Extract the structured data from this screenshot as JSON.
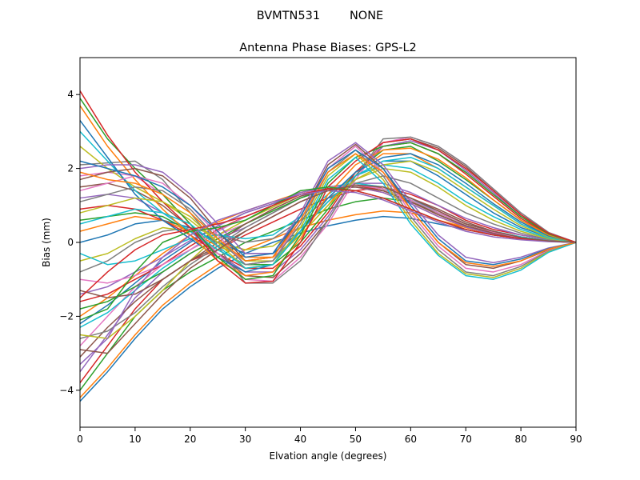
{
  "suptitle": "BVMTN531        NONE",
  "chart_data": {
    "type": "line",
    "title": "Antenna Phase Biases: GPS-L2",
    "xlabel": "Elvation angle (degrees)",
    "ylabel": "Bias (mm)",
    "xlim": [
      0,
      90
    ],
    "ylim": [
      -5,
      5
    ],
    "xticks": [
      0,
      10,
      20,
      30,
      40,
      50,
      60,
      70,
      80,
      90
    ],
    "yticks": [
      -4,
      -2,
      0,
      2,
      4
    ],
    "x": [
      0,
      5,
      10,
      15,
      20,
      25,
      30,
      35,
      40,
      45,
      50,
      55,
      60,
      65,
      70,
      75,
      80,
      85,
      90
    ],
    "grid": false,
    "legend": "none",
    "colors": [
      "#1f77b4",
      "#ff7f0e",
      "#2ca02c",
      "#d62728",
      "#9467bd",
      "#8c564b",
      "#e377c2",
      "#7f7f7f",
      "#bcbd22",
      "#17becf"
    ],
    "series": [
      {
        "values": [
          -4.3,
          -3.5,
          -2.6,
          -1.8,
          -1.2,
          -0.7,
          -0.3,
          0.0,
          0.25,
          0.45,
          0.6,
          0.7,
          0.65,
          0.5,
          0.35,
          0.2,
          0.1,
          0.05,
          0.0
        ]
      },
      {
        "values": [
          -4.2,
          -3.4,
          -2.5,
          -1.7,
          -1.1,
          -0.6,
          -0.2,
          0.1,
          0.4,
          0.6,
          0.75,
          0.85,
          0.8,
          0.6,
          0.4,
          0.25,
          0.15,
          0.05,
          0.0
        ]
      },
      {
        "values": [
          -4.0,
          -3.0,
          -2.0,
          -1.3,
          -0.8,
          -0.4,
          0.0,
          0.3,
          0.6,
          0.9,
          1.1,
          1.2,
          1.1,
          0.8,
          0.5,
          0.3,
          0.15,
          0.05,
          0.0
        ]
      },
      {
        "values": [
          -3.8,
          -2.8,
          -1.8,
          -1.0,
          -0.5,
          -0.2,
          0.2,
          0.55,
          0.9,
          1.2,
          1.4,
          1.5,
          1.3,
          1.0,
          0.6,
          0.35,
          0.2,
          0.08,
          0.0
        ]
      },
      {
        "values": [
          -3.5,
          -2.5,
          -1.5,
          -0.8,
          -0.3,
          0.1,
          0.4,
          0.8,
          1.2,
          1.5,
          1.6,
          1.6,
          1.35,
          1.0,
          0.65,
          0.4,
          0.2,
          0.08,
          0.0
        ]
      },
      {
        "values": [
          -3.1,
          -2.3,
          -1.6,
          -1.0,
          -0.5,
          -0.1,
          0.3,
          0.7,
          1.1,
          1.4,
          1.55,
          1.5,
          1.2,
          0.9,
          0.55,
          0.3,
          0.15,
          0.05,
          0.0
        ]
      },
      {
        "values": [
          -2.8,
          -2.0,
          -1.2,
          -0.6,
          -0.2,
          0.2,
          0.5,
          0.9,
          1.25,
          1.5,
          1.6,
          1.5,
          1.2,
          0.85,
          0.5,
          0.3,
          0.15,
          0.05,
          0.0
        ]
      },
      {
        "values": [
          -2.6,
          -2.4,
          -1.9,
          -1.2,
          -0.6,
          -0.1,
          0.4,
          0.8,
          1.2,
          1.45,
          1.55,
          1.45,
          1.15,
          0.8,
          0.5,
          0.28,
          0.12,
          0.04,
          0.0
        ]
      },
      {
        "values": [
          -2.5,
          -2.6,
          -2.0,
          -1.3,
          -0.5,
          0.2,
          0.6,
          0.95,
          1.3,
          1.5,
          1.55,
          1.4,
          1.1,
          0.75,
          0.45,
          0.25,
          0.1,
          0.03,
          0.0
        ]
      },
      {
        "values": [
          -2.3,
          -1.9,
          -1.3,
          -0.7,
          -0.2,
          0.3,
          0.7,
          1.0,
          1.3,
          1.5,
          1.6,
          1.5,
          1.2,
          0.8,
          0.5,
          0.3,
          0.15,
          0.05,
          0.0
        ]
      },
      {
        "values": [
          -2.2,
          -1.7,
          -1.1,
          -0.5,
          0.0,
          0.45,
          0.8,
          1.05,
          1.3,
          1.45,
          1.5,
          1.4,
          1.1,
          0.75,
          0.45,
          0.25,
          0.1,
          0.04,
          0.0
        ]
      },
      {
        "values": [
          -2.0,
          -1.5,
          -0.9,
          -0.3,
          0.2,
          0.55,
          0.85,
          1.1,
          1.35,
          1.5,
          1.5,
          1.35,
          1.05,
          0.7,
          0.4,
          0.22,
          0.1,
          0.03,
          0.0
        ]
      },
      {
        "values": [
          -1.8,
          -1.6,
          -1.2,
          -0.8,
          -0.3,
          0.1,
          0.5,
          0.85,
          1.2,
          1.45,
          1.55,
          1.45,
          1.15,
          0.8,
          0.5,
          0.28,
          0.12,
          0.04,
          0.0
        ]
      },
      {
        "values": [
          -1.6,
          -1.4,
          -1.0,
          -0.6,
          -0.1,
          0.35,
          0.7,
          1.0,
          1.3,
          1.5,
          1.55,
          1.4,
          1.1,
          0.75,
          0.45,
          0.25,
          0.1,
          0.03,
          0.0
        ]
      },
      {
        "values": [
          -1.4,
          -1.2,
          -0.8,
          -0.4,
          0.05,
          0.45,
          0.8,
          1.05,
          1.35,
          1.5,
          1.5,
          1.35,
          1.05,
          0.7,
          0.42,
          0.22,
          0.1,
          0.03,
          0.0
        ]
      },
      {
        "values": [
          -1.3,
          -1.5,
          -1.4,
          -1.0,
          -0.5,
          0.0,
          0.5,
          0.9,
          1.25,
          1.45,
          1.5,
          1.4,
          1.1,
          0.75,
          0.45,
          0.25,
          0.1,
          0.03,
          0.0
        ]
      },
      {
        "values": [
          -1.0,
          -1.1,
          -0.9,
          -0.6,
          -0.2,
          0.3,
          0.7,
          1.0,
          1.3,
          1.5,
          1.55,
          1.45,
          1.15,
          0.8,
          0.5,
          0.28,
          0.12,
          0.04,
          0.0
        ]
      },
      {
        "values": [
          -0.8,
          -0.5,
          0.0,
          0.3,
          0.4,
          0.2,
          0.0,
          0.1,
          0.6,
          1.2,
          1.6,
          1.8,
          1.6,
          1.2,
          0.8,
          0.5,
          0.25,
          0.08,
          0.0
        ]
      },
      {
        "values": [
          -0.5,
          -0.3,
          0.1,
          0.4,
          0.3,
          0.0,
          -0.2,
          -0.1,
          0.4,
          1.1,
          1.7,
          2.0,
          1.9,
          1.5,
          1.0,
          0.6,
          0.3,
          0.1,
          0.0
        ]
      },
      {
        "values": [
          -0.3,
          -0.6,
          -0.5,
          -0.2,
          0.1,
          0.2,
          0.1,
          0.2,
          0.7,
          1.3,
          1.8,
          2.1,
          2.0,
          1.6,
          1.1,
          0.7,
          0.35,
          0.12,
          0.0
        ]
      },
      {
        "values": [
          0.0,
          0.2,
          0.5,
          0.6,
          0.4,
          0.0,
          -0.3,
          -0.3,
          0.3,
          1.1,
          1.8,
          2.2,
          2.2,
          1.8,
          1.3,
          0.8,
          0.4,
          0.15,
          0.0
        ]
      },
      {
        "values": [
          0.3,
          0.5,
          0.7,
          0.6,
          0.3,
          -0.1,
          -0.4,
          -0.4,
          0.2,
          1.0,
          1.9,
          2.4,
          2.4,
          2.0,
          1.5,
          1.0,
          0.5,
          0.18,
          0.0
        ]
      },
      {
        "values": [
          0.6,
          0.7,
          0.8,
          0.7,
          0.3,
          -0.2,
          -0.6,
          -0.6,
          0.0,
          0.9,
          1.9,
          2.5,
          2.6,
          2.2,
          1.7,
          1.15,
          0.6,
          0.2,
          0.0
        ]
      },
      {
        "values": [
          0.9,
          1.0,
          0.9,
          0.6,
          0.2,
          -0.3,
          -0.7,
          -0.7,
          -0.1,
          0.8,
          1.9,
          2.6,
          2.7,
          2.4,
          1.85,
          1.25,
          0.65,
          0.22,
          0.0
        ]
      },
      {
        "values": [
          1.2,
          1.3,
          1.2,
          0.8,
          0.3,
          -0.3,
          -0.8,
          -0.8,
          -0.2,
          0.7,
          1.8,
          2.6,
          2.75,
          2.5,
          1.95,
          1.35,
          0.7,
          0.24,
          0.0
        ]
      },
      {
        "values": [
          1.5,
          1.6,
          1.4,
          1.0,
          0.4,
          -0.3,
          -0.9,
          -0.95,
          -0.3,
          0.6,
          1.8,
          2.7,
          2.8,
          2.55,
          2.05,
          1.4,
          0.75,
          0.25,
          0.0
        ]
      },
      {
        "values": [
          1.8,
          1.9,
          1.8,
          1.3,
          0.5,
          -0.3,
          -1.0,
          -1.05,
          -0.4,
          0.5,
          1.7,
          2.7,
          2.85,
          2.6,
          2.1,
          1.45,
          0.8,
          0.27,
          0.0
        ]
      },
      {
        "values": [
          2.1,
          2.15,
          2.2,
          1.7,
          0.8,
          -0.1,
          -1.1,
          -1.1,
          -0.5,
          0.6,
          1.8,
          2.8,
          2.85,
          2.6,
          2.1,
          1.45,
          0.8,
          0.27,
          0.0
        ]
      },
      {
        "values": [
          2.6,
          2.0,
          1.5,
          1.1,
          0.6,
          0.0,
          -0.5,
          -0.5,
          0.2,
          1.0,
          1.7,
          2.1,
          2.2,
          1.9,
          1.4,
          0.9,
          0.45,
          0.15,
          0.0
        ]
      },
      {
        "values": [
          3.0,
          2.2,
          1.4,
          0.8,
          0.3,
          -0.2,
          -0.6,
          -0.5,
          0.3,
          1.1,
          1.8,
          2.2,
          2.3,
          2.0,
          1.5,
          1.0,
          0.5,
          0.17,
          0.0
        ]
      },
      {
        "values": [
          3.3,
          2.3,
          1.3,
          0.6,
          0.1,
          -0.4,
          -0.8,
          -0.6,
          0.3,
          1.2,
          1.9,
          2.3,
          2.4,
          2.1,
          1.6,
          1.05,
          0.55,
          0.18,
          0.0
        ]
      },
      {
        "values": [
          3.7,
          2.6,
          1.7,
          0.9,
          0.2,
          -0.5,
          -0.9,
          -0.8,
          0.1,
          1.3,
          2.1,
          2.5,
          2.55,
          2.25,
          1.75,
          1.15,
          0.6,
          0.2,
          0.0
        ]
      },
      {
        "values": [
          3.9,
          2.8,
          2.0,
          1.3,
          0.5,
          -0.4,
          -1.0,
          -0.9,
          0.2,
          1.6,
          2.3,
          2.6,
          2.7,
          2.4,
          1.9,
          1.3,
          0.7,
          0.23,
          0.0
        ]
      },
      {
        "values": [
          4.1,
          2.9,
          1.9,
          1.1,
          0.4,
          -0.5,
          -1.1,
          -1.05,
          0.0,
          1.5,
          2.2,
          2.7,
          2.8,
          2.5,
          2.0,
          1.4,
          0.75,
          0.25,
          0.0
        ]
      },
      {
        "values": [
          2.0,
          2.1,
          2.1,
          1.9,
          1.3,
          0.5,
          -0.3,
          -0.3,
          0.8,
          2.2,
          2.7,
          2.1,
          1.1,
          0.2,
          -0.4,
          -0.55,
          -0.4,
          -0.15,
          0.0
        ]
      },
      {
        "values": [
          1.7,
          1.9,
          2.0,
          1.8,
          1.2,
          0.3,
          -0.5,
          -0.4,
          0.7,
          2.1,
          2.65,
          2.0,
          0.9,
          0.0,
          -0.6,
          -0.7,
          -0.5,
          -0.2,
          0.0
        ]
      },
      {
        "values": [
          1.4,
          1.6,
          1.8,
          1.6,
          1.0,
          0.2,
          -0.6,
          -0.5,
          0.6,
          2.0,
          2.6,
          1.9,
          0.8,
          -0.1,
          -0.7,
          -0.8,
          -0.6,
          -0.22,
          0.0
        ]
      },
      {
        "values": [
          1.1,
          1.3,
          1.5,
          1.4,
          0.9,
          0.1,
          -0.6,
          -0.5,
          0.5,
          1.9,
          2.5,
          1.8,
          0.7,
          -0.2,
          -0.8,
          -0.9,
          -0.65,
          -0.24,
          0.0
        ]
      },
      {
        "values": [
          0.8,
          1.0,
          1.2,
          1.1,
          0.7,
          0.0,
          -0.7,
          -0.6,
          0.4,
          1.8,
          2.4,
          1.7,
          0.6,
          -0.3,
          -0.85,
          -0.95,
          -0.7,
          -0.25,
          0.0
        ]
      },
      {
        "values": [
          0.5,
          0.7,
          0.9,
          0.8,
          0.5,
          -0.1,
          -0.7,
          -0.6,
          0.3,
          1.7,
          2.3,
          1.6,
          0.5,
          -0.35,
          -0.9,
          -1.0,
          -0.75,
          -0.27,
          0.0
        ]
      },
      {
        "values": [
          2.2,
          2.0,
          1.8,
          1.5,
          1.0,
          0.3,
          -0.4,
          -0.3,
          0.7,
          2.0,
          2.5,
          2.0,
          1.0,
          0.1,
          -0.5,
          -0.6,
          -0.45,
          -0.17,
          0.0
        ]
      },
      {
        "values": [
          1.9,
          1.7,
          1.6,
          1.3,
          0.8,
          0.1,
          -0.5,
          -0.4,
          0.6,
          1.9,
          2.4,
          1.9,
          0.9,
          0.0,
          -0.55,
          -0.65,
          -0.5,
          -0.18,
          0.0
        ]
      },
      {
        "values": [
          -2.1,
          -1.8,
          -0.8,
          0.0,
          0.3,
          0.4,
          0.6,
          1.0,
          1.4,
          1.5,
          1.4,
          1.2,
          0.9,
          0.6,
          0.35,
          0.2,
          0.1,
          0.03,
          0.0
        ]
      },
      {
        "values": [
          -1.5,
          -0.8,
          -0.2,
          0.2,
          0.35,
          0.5,
          0.7,
          1.0,
          1.3,
          1.45,
          1.4,
          1.2,
          0.9,
          0.6,
          0.35,
          0.2,
          0.1,
          0.03,
          0.0
        ]
      },
      {
        "values": [
          -3.3,
          -2.6,
          -1.3,
          -0.4,
          0.2,
          0.6,
          0.85,
          1.1,
          1.3,
          1.4,
          1.35,
          1.15,
          0.85,
          0.55,
          0.3,
          0.15,
          0.07,
          0.02,
          0.0
        ]
      },
      {
        "values": [
          -2.9,
          -3.0,
          -2.2,
          -1.4,
          -0.7,
          -0.2,
          0.3,
          0.7,
          1.1,
          1.4,
          1.55,
          1.5,
          1.2,
          0.85,
          0.5,
          0.3,
          0.13,
          0.04,
          0.0
        ]
      }
    ]
  }
}
